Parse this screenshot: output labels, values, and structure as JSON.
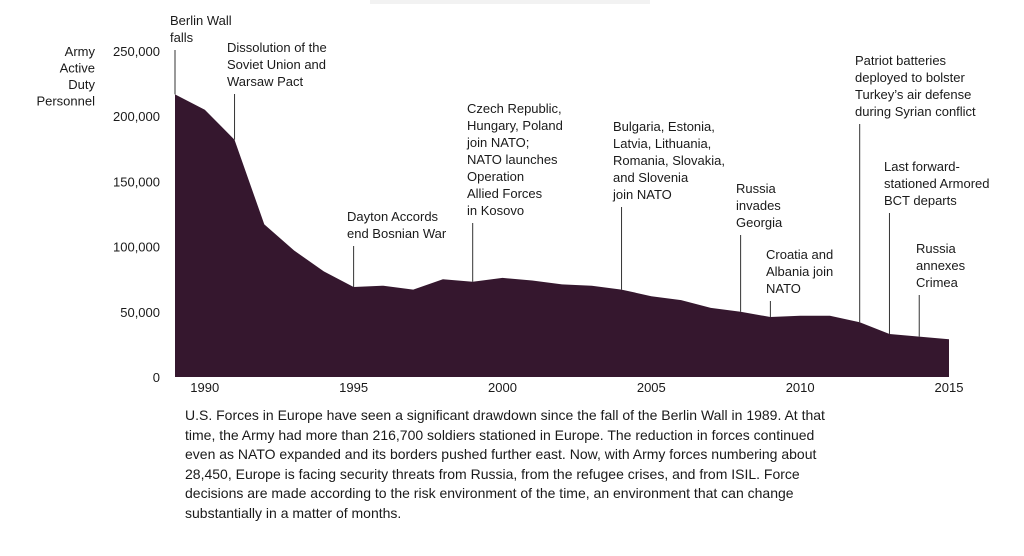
{
  "chart_data": {
    "type": "area",
    "ylabel_lines": [
      "Army",
      "Active",
      "Duty",
      "Personnel"
    ],
    "xlim": [
      1989,
      2015
    ],
    "ylim": [
      0,
      250000
    ],
    "x_ticks": [
      1990,
      1995,
      2000,
      2005,
      2010,
      2015
    ],
    "y_ticks": [
      {
        "value": 0,
        "label": "0"
      },
      {
        "value": 50000,
        "label": "50,000"
      },
      {
        "value": 100000,
        "label": "100,000"
      },
      {
        "value": 150000,
        "label": "150,000"
      },
      {
        "value": 200000,
        "label": "200,000"
      },
      {
        "value": 250000,
        "label": "250,000"
      }
    ],
    "grid": false,
    "fill_color": "#35172e",
    "x": [
      1989,
      1990,
      1991,
      1992,
      1993,
      1994,
      1995,
      1996,
      1997,
      1998,
      1999,
      2000,
      2001,
      2002,
      2003,
      2004,
      2005,
      2006,
      2007,
      2008,
      2009,
      2010,
      2011,
      2012,
      2013,
      2014,
      2015
    ],
    "values": [
      216700,
      205000,
      182000,
      117000,
      97000,
      81000,
      69000,
      70000,
      67000,
      75000,
      73000,
      76000,
      74000,
      71000,
      70000,
      67000,
      62000,
      59000,
      53000,
      50000,
      46000,
      47000,
      47000,
      42000,
      33000,
      31000,
      29000
    ],
    "annotations": [
      {
        "year": 1989,
        "lines": [
          "Berlin Wall",
          "falls"
        ]
      },
      {
        "year": 1991,
        "lines": [
          "Dissolution of the",
          "Soviet Union and",
          "Warsaw Pact"
        ]
      },
      {
        "year": 1995,
        "lines": [
          "Dayton Accords",
          "end Bosnian War"
        ]
      },
      {
        "year": 1999,
        "lines": [
          "Czech Republic,",
          "Hungary, Poland",
          "join NATO;",
          "NATO launches",
          "Operation",
          "Allied Forces",
          "in Kosovo"
        ]
      },
      {
        "year": 2004,
        "lines": [
          "Bulgaria, Estonia,",
          "Latvia, Lithuania,",
          "Romania, Slovakia,",
          "and Slovenia",
          "join NATO"
        ]
      },
      {
        "year": 2008,
        "lines": [
          "Russia",
          "invades",
          "Georgia"
        ]
      },
      {
        "year": 2009,
        "lines": [
          "Croatia and",
          "Albania join",
          "NATO"
        ]
      },
      {
        "year": 2012,
        "lines": [
          "Patriot batteries",
          "deployed to bolster",
          "Turkey’s air defense",
          "during Syrian conflict"
        ]
      },
      {
        "year": 2013,
        "lines": [
          "Last forward-",
          "stationed Armored",
          "BCT departs"
        ]
      },
      {
        "year": 2014,
        "lines": [
          "Russia",
          "annexes",
          "Crimea"
        ]
      }
    ]
  },
  "caption": "U.S. Forces in Europe have seen a significant drawdown since the fall of the Berlin Wall in 1989. At that time, the Army had more than 216,700 soldiers stationed in Europe. The reduction in forces continued even as NATO expanded and its borders pushed further east. Now, with Army forces numbering about 28,450, Europe is facing security threats from Russia, from the refugee crises, and from ISIL. Force decisions are made according to the risk environment of the time, an environment that can change substantially in a matter of months."
}
